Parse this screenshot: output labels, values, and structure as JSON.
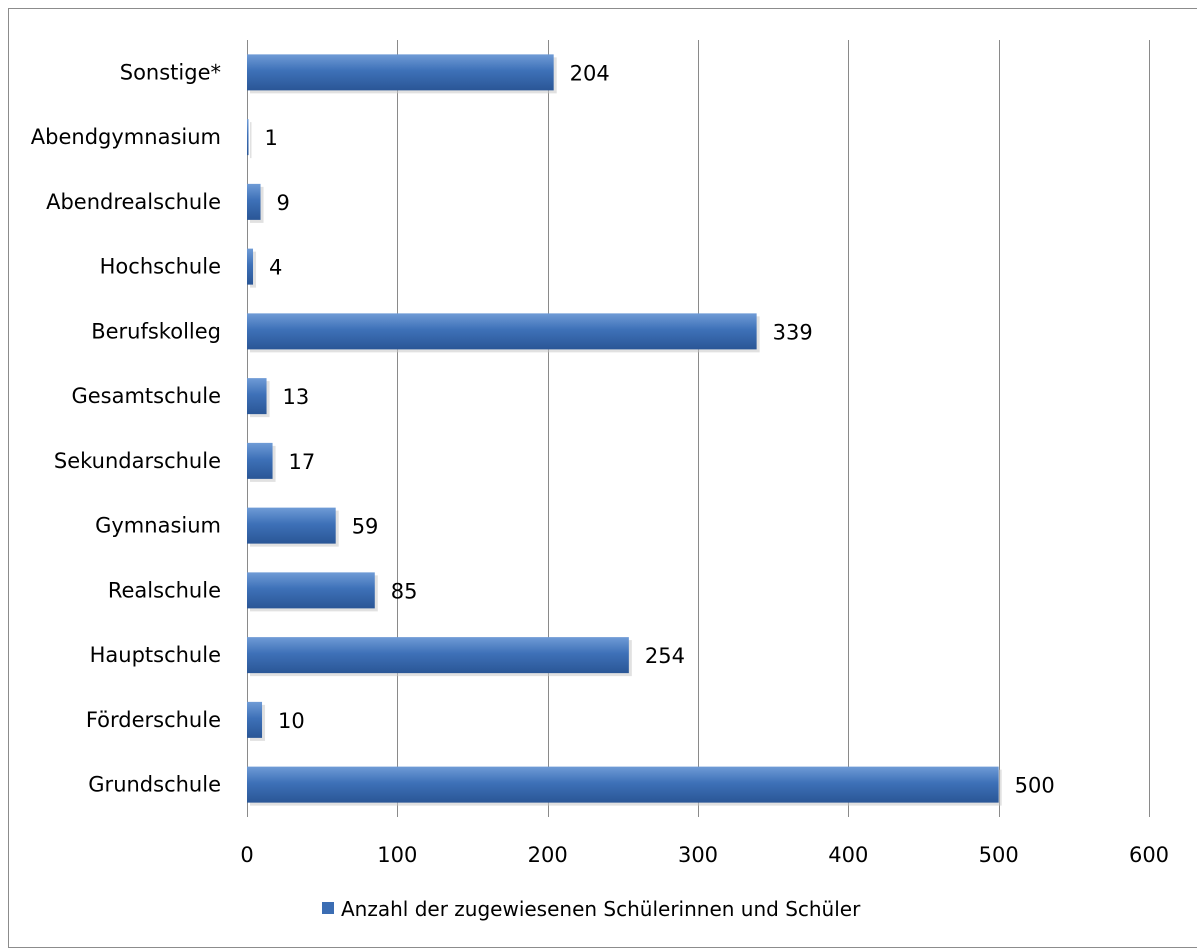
{
  "chart_data": {
    "type": "bar",
    "orientation": "horizontal",
    "categories": [
      "Sonstige*",
      "Abendgymnasium",
      "Abendrealschule",
      "Hochschule",
      "Berufskolleg",
      "Gesamtschule",
      "Sekundarschule",
      "Gymnasium",
      "Realschule",
      "Hauptschule",
      "Förderschule",
      "Grundschule"
    ],
    "series": [
      {
        "name": "Anzahl der zugewiesenen Schülerinnen und Schüler",
        "values": [
          204,
          1,
          9,
          4,
          339,
          13,
          17,
          59,
          85,
          254,
          10,
          500
        ],
        "color": "#3b6db3"
      }
    ],
    "xticks": [
      0,
      100,
      200,
      300,
      400,
      500,
      600
    ],
    "xlim": [
      0,
      600
    ],
    "grid": true,
    "legend_position": "bottom",
    "data_labels": true
  }
}
